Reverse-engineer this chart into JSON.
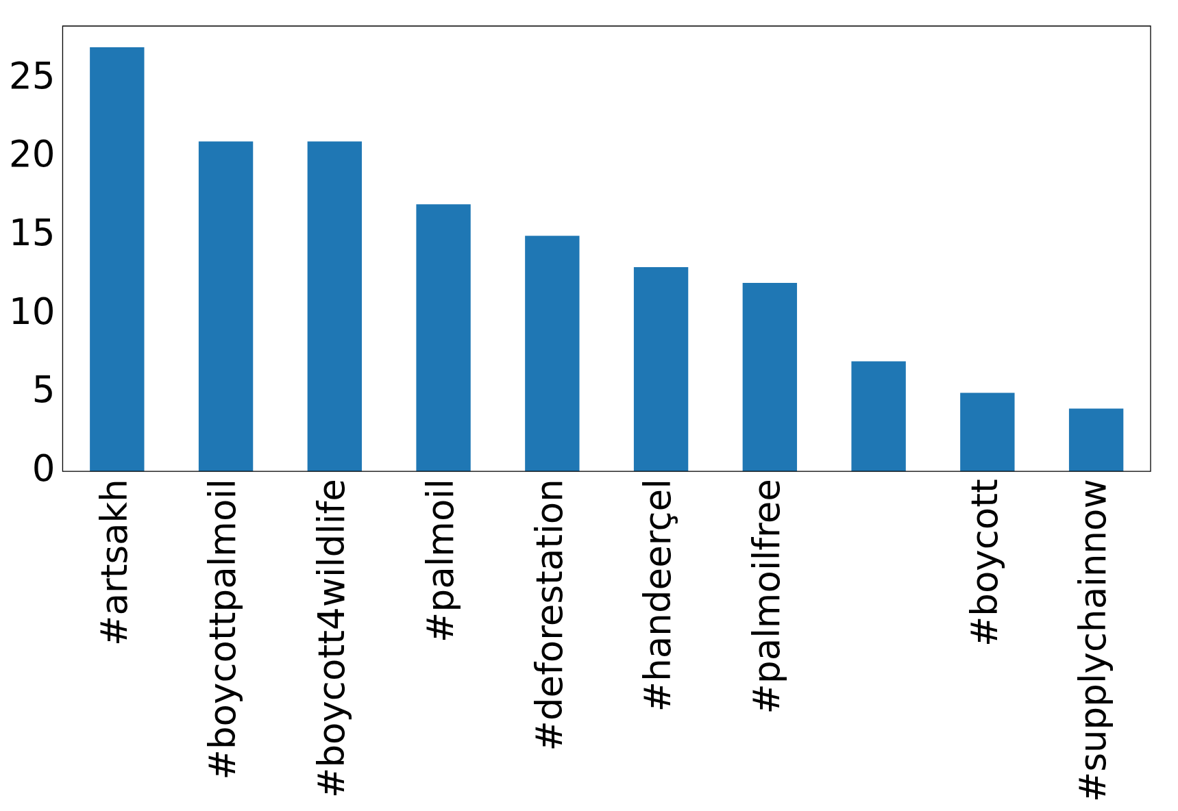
{
  "chart_data": {
    "type": "bar",
    "categories": [
      "#artsakh",
      "#boycottpalmoil",
      "#boycott4wildlife",
      "#palmoil",
      "#deforestation",
      "#handeerçel",
      "#palmoilfree",
      null,
      "#boycott",
      "#supplychainnow"
    ],
    "values": [
      27,
      21,
      21,
      17,
      15,
      13,
      12,
      7,
      5,
      4
    ],
    "color": "#1f77b4",
    "ylim": [
      0,
      28.35
    ],
    "yticks": [
      0,
      5,
      10,
      15,
      20,
      25
    ]
  }
}
